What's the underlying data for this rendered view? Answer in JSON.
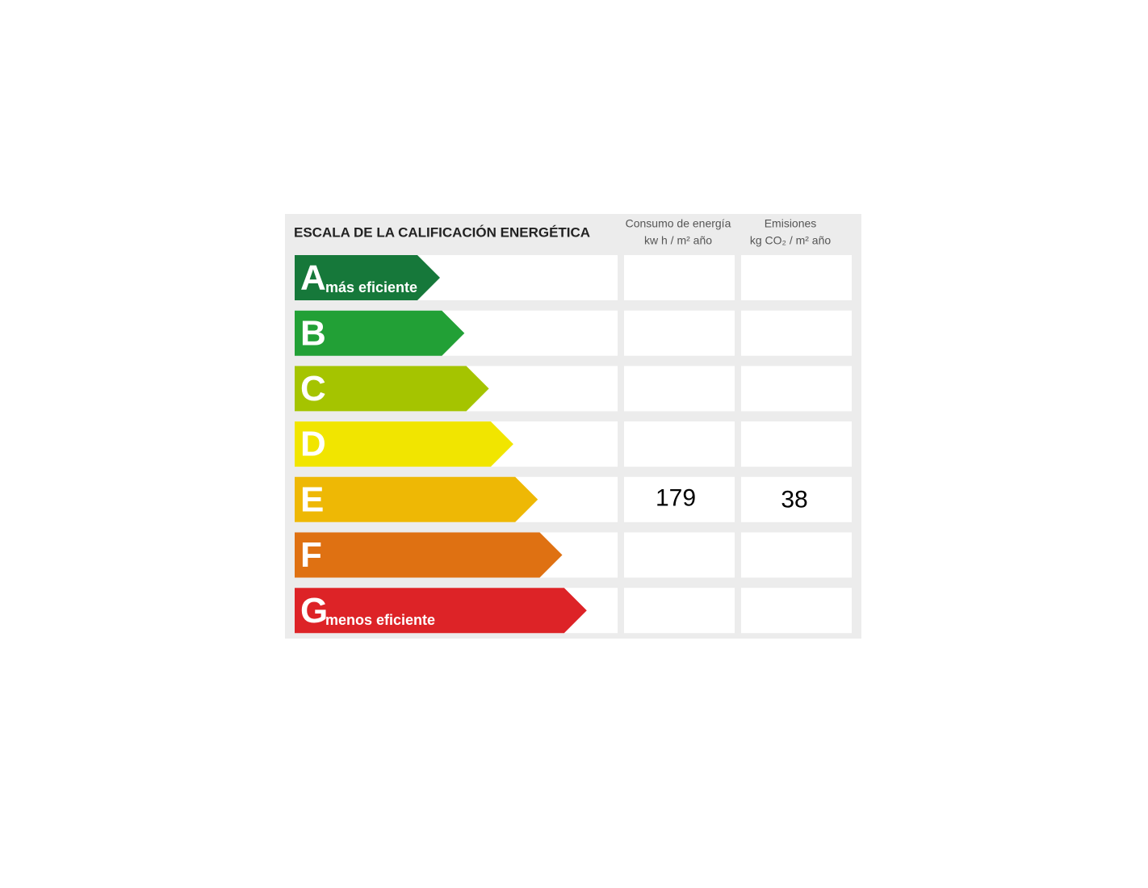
{
  "header": {
    "title": "ESCALA DE LA CALIFICACIÓN ENERGÉTICA",
    "columns": [
      {
        "line1": "Consumo de energía",
        "line2": "kw h / m² año"
      },
      {
        "line1": "Emisiones",
        "line2": "kg CO₂ / m² año"
      }
    ]
  },
  "rows": [
    {
      "letter": "A",
      "note": "más eficiente",
      "color": "#16783a"
    },
    {
      "letter": "B",
      "color": "#22a036"
    },
    {
      "letter": "C",
      "color": "#a5c400"
    },
    {
      "letter": "D",
      "color": "#f1e500"
    },
    {
      "letter": "E",
      "color": "#eeb805",
      "consumo": 179,
      "emisiones": 38
    },
    {
      "letter": "F",
      "color": "#df7112"
    },
    {
      "letter": "G",
      "note": "menos eficiente",
      "color": "#dd2327"
    }
  ]
}
